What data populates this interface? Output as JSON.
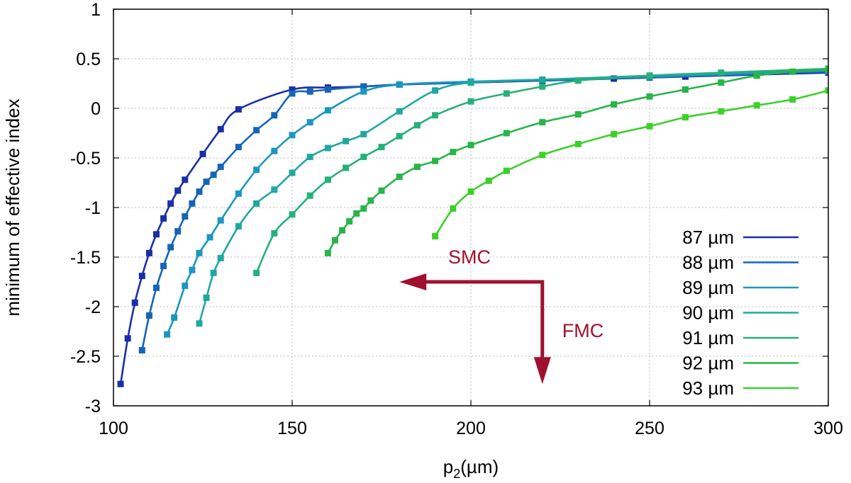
{
  "chart_data": {
    "type": "line",
    "xlabel": "p",
    "xlabel_sub": "2",
    "xlabel_unit": "(µm)",
    "ylabel": "minimum of effective index",
    "xlim": [
      100,
      300
    ],
    "ylim": [
      -3,
      1
    ],
    "xticks": [
      "100",
      "150",
      "200",
      "250",
      "300"
    ],
    "yticks": [
      "1",
      "0.5",
      "0",
      "-0.5",
      "-1",
      "-1.5",
      "-2",
      "-2.5",
      "-3"
    ],
    "grid": true,
    "legend_position": "bottom-right",
    "series": [
      {
        "name": "87 µm",
        "color": "#1a2fa6",
        "x": [
          102,
          104,
          106,
          108,
          110,
          112,
          114,
          116,
          118,
          120,
          125,
          130,
          135,
          150,
          160,
          170,
          180,
          200,
          220,
          240,
          260,
          280,
          300
        ],
        "y": [
          -2.78,
          -2.32,
          -1.96,
          -1.69,
          -1.46,
          -1.27,
          -1.11,
          -0.96,
          -0.83,
          -0.72,
          -0.46,
          -0.21,
          -0.01,
          0.19,
          0.21,
          0.22,
          0.24,
          0.26,
          0.28,
          0.3,
          0.32,
          0.34,
          0.36
        ]
      },
      {
        "name": "88 µm",
        "color": "#1565b8",
        "x": [
          108,
          110,
          112,
          114,
          116,
          118,
          120,
          122,
          124,
          126,
          128,
          130,
          135,
          140,
          145,
          150,
          155,
          160,
          170,
          180,
          200,
          250,
          300
        ],
        "y": [
          -2.44,
          -2.09,
          -1.81,
          -1.59,
          -1.4,
          -1.24,
          -1.09,
          -0.96,
          -0.84,
          -0.74,
          -0.67,
          -0.59,
          -0.39,
          -0.22,
          -0.07,
          0.15,
          0.17,
          0.19,
          0.22,
          0.24,
          0.26,
          0.31,
          0.37
        ]
      },
      {
        "name": "89 µm",
        "color": "#1b97c0",
        "x": [
          115,
          117,
          120,
          122,
          124,
          127,
          130,
          135,
          140,
          145,
          150,
          155,
          160,
          170,
          180,
          200,
          250,
          300
        ],
        "y": [
          -2.28,
          -2.11,
          -1.79,
          -1.63,
          -1.46,
          -1.3,
          -1.13,
          -0.86,
          -0.62,
          -0.43,
          -0.27,
          -0.14,
          -0.02,
          0.17,
          0.24,
          0.27,
          0.32,
          0.38
        ]
      },
      {
        "name": "90 µm",
        "color": "#1fa8a0",
        "x": [
          124,
          126,
          128,
          130,
          135,
          140,
          145,
          150,
          155,
          160,
          165,
          170,
          180,
          190,
          200,
          220,
          250,
          300
        ],
        "y": [
          -2.17,
          -1.91,
          -1.66,
          -1.51,
          -1.19,
          -0.96,
          -0.82,
          -0.65,
          -0.49,
          -0.4,
          -0.33,
          -0.26,
          -0.03,
          0.18,
          0.26,
          0.29,
          0.33,
          0.39
        ]
      },
      {
        "name": "91 µm",
        "color": "#26b07a",
        "x": [
          140,
          145,
          150,
          155,
          160,
          165,
          170,
          175,
          180,
          185,
          190,
          200,
          210,
          220,
          230,
          250,
          270,
          300
        ],
        "y": [
          -1.66,
          -1.26,
          -1.07,
          -0.88,
          -0.72,
          -0.6,
          -0.49,
          -0.39,
          -0.28,
          -0.17,
          -0.07,
          0.07,
          0.15,
          0.22,
          0.28,
          0.33,
          0.36,
          0.4
        ]
      },
      {
        "name": "92 µm",
        "color": "#28b548",
        "x": [
          160,
          162,
          164,
          166,
          168,
          170,
          172,
          175,
          180,
          185,
          190,
          195,
          200,
          210,
          220,
          230,
          240,
          250,
          260,
          270,
          280,
          290,
          300
        ],
        "y": [
          -1.46,
          -1.33,
          -1.23,
          -1.14,
          -1.06,
          -1.01,
          -0.93,
          -0.83,
          -0.69,
          -0.59,
          -0.53,
          -0.44,
          -0.37,
          -0.25,
          -0.14,
          -0.06,
          0.04,
          0.12,
          0.19,
          0.26,
          0.33,
          0.37,
          0.39
        ]
      },
      {
        "name": "93 µm",
        "color": "#3dd02a",
        "x": [
          190,
          195,
          200,
          205,
          210,
          220,
          230,
          240,
          250,
          260,
          270,
          280,
          290,
          300
        ],
        "y": [
          -1.29,
          -1.01,
          -0.84,
          -0.73,
          -0.63,
          -0.47,
          -0.36,
          -0.26,
          -0.18,
          -0.09,
          -0.03,
          0.03,
          0.09,
          0.18
        ]
      }
    ],
    "annotations": {
      "smc_label": "SMC",
      "fmc_label": "FMC",
      "color": "#a0102e",
      "corner": [
        220,
        -1.75
      ],
      "smc_arrow_end": [
        180,
        -1.75
      ],
      "fmc_arrow_end": [
        220,
        -2.78
      ]
    }
  }
}
